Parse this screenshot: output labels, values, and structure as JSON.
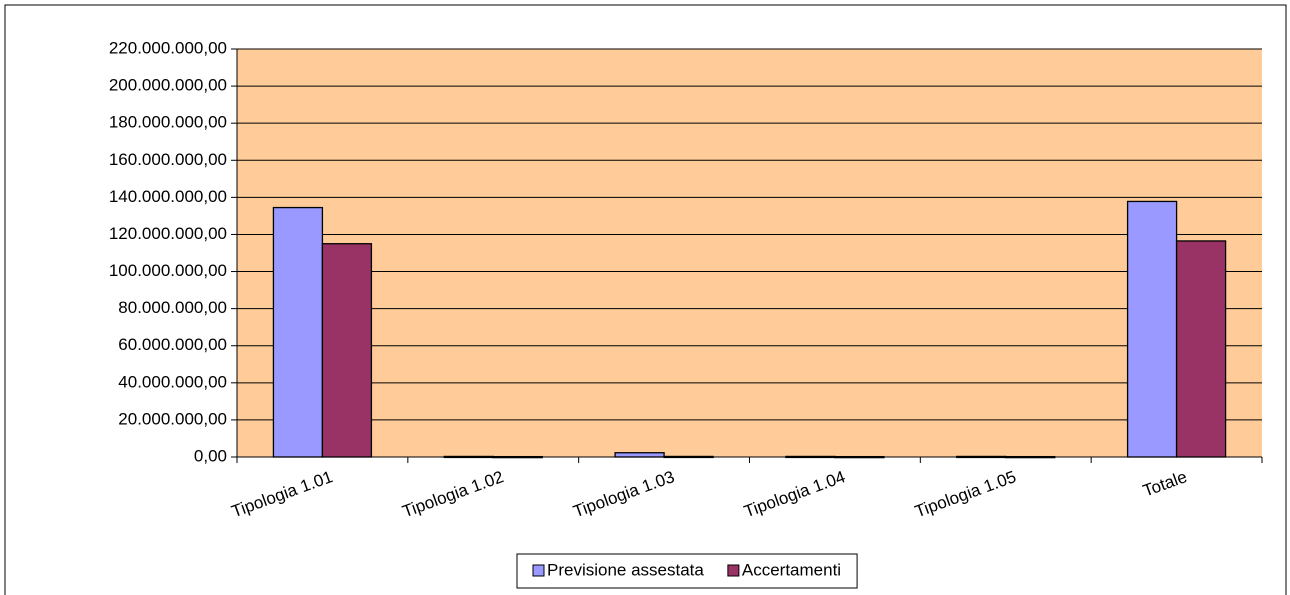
{
  "chart_data": {
    "type": "bar",
    "categories": [
      "Tipologia 1.01",
      "Tipologia 1.02",
      "Tipologia 1.03",
      "Tipologia 1.04",
      "Tipologia 1.05",
      "Totale"
    ],
    "series": [
      {
        "name": "Previsione assestata",
        "color": "#9999ff",
        "values": [
          134500000,
          300000,
          2300000,
          300000,
          300000,
          137800000
        ]
      },
      {
        "name": "Accertamenti",
        "color": "#993366",
        "values": [
          115000000,
          200000,
          300000,
          200000,
          200000,
          116500000
        ]
      }
    ],
    "ylim": [
      0,
      220000000
    ],
    "yticks": [
      {
        "value": 0,
        "label": "0,00"
      },
      {
        "value": 20000000,
        "label": "20.000.000,00"
      },
      {
        "value": 40000000,
        "label": "40.000.000,00"
      },
      {
        "value": 60000000,
        "label": "60.000.000,00"
      },
      {
        "value": 80000000,
        "label": "80.000.000,00"
      },
      {
        "value": 100000000,
        "label": "100.000.000,00"
      },
      {
        "value": 120000000,
        "label": "120.000.000,00"
      },
      {
        "value": 140000000,
        "label": "140.000.000,00"
      },
      {
        "value": 160000000,
        "label": "160.000.000,00"
      },
      {
        "value": 180000000,
        "label": "180.000.000,00"
      },
      {
        "value": 200000000,
        "label": "200.000.000,00"
      },
      {
        "value": 220000000,
        "label": "220.000.000,00"
      }
    ],
    "grid": true,
    "plot_background": "#ffcc99",
    "legend": "bottom"
  }
}
